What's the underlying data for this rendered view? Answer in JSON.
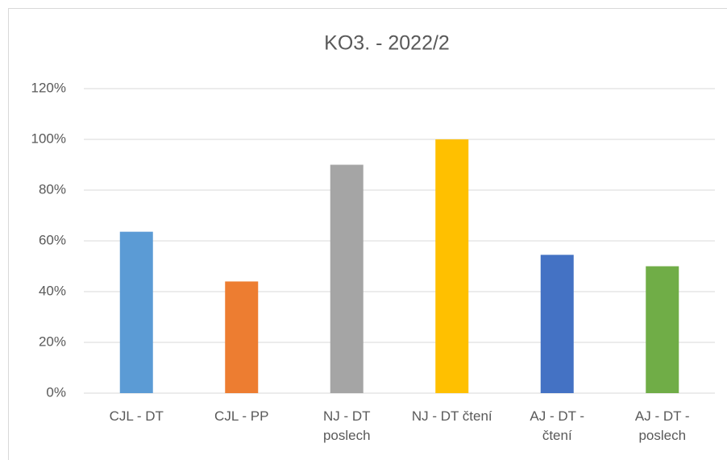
{
  "chart_data": {
    "type": "bar",
    "title": "KO3. - 2022/2",
    "categories": [
      "CJL - DT",
      "CJL - PP",
      "NJ - DT poslech",
      "NJ - DT čtení",
      "AJ - DT - čtení",
      "AJ - DT - poslech"
    ],
    "values": [
      63.6,
      44,
      90,
      100,
      54.5,
      50
    ],
    "colors": [
      "#5b9bd5",
      "#ed7d31",
      "#a5a5a5",
      "#ffc000",
      "#4472c4",
      "#70ad47"
    ],
    "ylim": [
      0,
      120
    ],
    "yticks": [
      {
        "value": 0,
        "label": "0%"
      },
      {
        "value": 20,
        "label": "20%"
      },
      {
        "value": 40,
        "label": "40%"
      },
      {
        "value": 60,
        "label": "60%"
      },
      {
        "value": 80,
        "label": "80%"
      },
      {
        "value": 100,
        "label": "100%"
      },
      {
        "value": 120,
        "label": "120%"
      }
    ],
    "grid": true
  }
}
